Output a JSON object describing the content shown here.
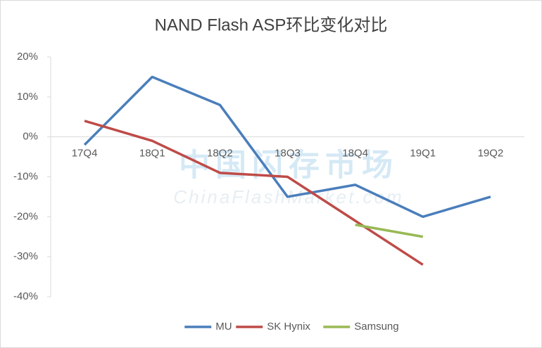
{
  "chart_data": {
    "type": "line",
    "title": "NAND Flash ASP环比变化对比",
    "watermark": [
      "中国闪存市场",
      "ChinaFlashMarket.com"
    ],
    "categories": [
      "17Q4",
      "18Q1",
      "18Q2",
      "18Q3",
      "18Q4",
      "19Q1",
      "19Q2"
    ],
    "series": [
      {
        "name": "MU",
        "color": "#4a7ebb",
        "values": [
          -2,
          15,
          8,
          -15,
          -12,
          -20,
          -15
        ]
      },
      {
        "name": "SK Hynix",
        "color": "#be4b48",
        "values": [
          4,
          -1,
          -9,
          -10,
          -21,
          -32,
          null
        ]
      },
      {
        "name": "Samsung",
        "color": "#98b954",
        "values": [
          null,
          null,
          null,
          null,
          -22,
          -25,
          null
        ]
      }
    ],
    "ylim": [
      -40,
      20
    ],
    "yticks": [
      {
        "value": -40,
        "label": "-40%"
      },
      {
        "value": -30,
        "label": "-30%"
      },
      {
        "value": -20,
        "label": "-20%"
      },
      {
        "value": -10,
        "label": "-10%"
      },
      {
        "value": 0,
        "label": "0%"
      },
      {
        "value": 10,
        "label": "10%"
      },
      {
        "value": 20,
        "label": "20%"
      }
    ],
    "legend": "bottom"
  }
}
